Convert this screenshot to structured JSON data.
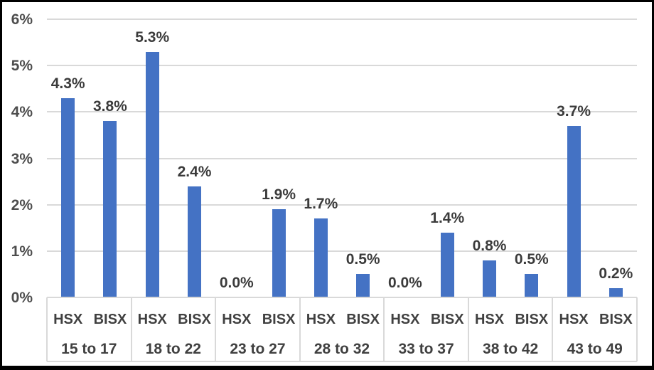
{
  "chart_data": {
    "type": "bar",
    "title": "",
    "categories": [
      "15 to 17",
      "18 to 22",
      "23 to 27",
      "28 to 32",
      "33 to 37",
      "38 to 42",
      "43 to 49"
    ],
    "series": [
      {
        "name": "HSX",
        "values": [
          4.3,
          5.3,
          0.0,
          1.7,
          0.0,
          0.8,
          3.7
        ],
        "labels": [
          "4.3%",
          "5.3%",
          "0.0%",
          "1.7%",
          "0.0%",
          "0.8%",
          "3.7%"
        ]
      },
      {
        "name": "BISX",
        "values": [
          3.8,
          2.4,
          1.9,
          0.5,
          1.4,
          0.5,
          0.2
        ],
        "labels": [
          "3.8%",
          "2.4%",
          "1.9%",
          "0.5%",
          "1.4%",
          "0.5%",
          "0.2%"
        ]
      }
    ],
    "y_axis": {
      "min": 0,
      "max": 6,
      "ticks": [
        "0%",
        "1%",
        "2%",
        "3%",
        "4%",
        "5%",
        "6%"
      ],
      "unit": "%"
    },
    "xlabel": "",
    "ylabel": "",
    "grid": true,
    "legend": "none",
    "data_labels": true,
    "colors": {
      "bar": "#4472C4",
      "gridline": "#D9D9D9",
      "axis_line": "#D9D9D9",
      "axis_text": "#4D4D4D",
      "data_label_text": "#3B3B3B",
      "category_text": "#404040",
      "frame_border": "#000000",
      "background": "#FFFFFF"
    }
  }
}
